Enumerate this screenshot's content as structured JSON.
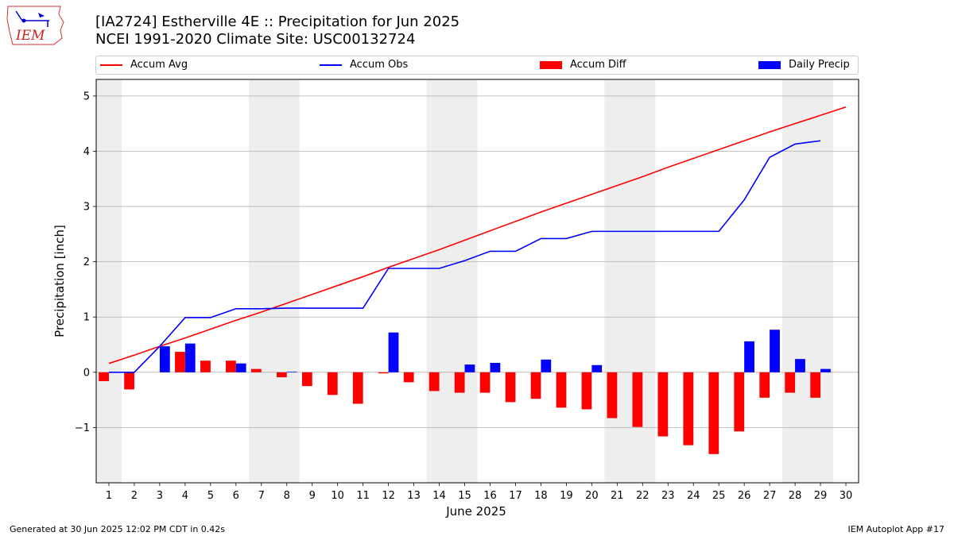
{
  "header": {
    "title_line1": "[IA2724] Estherville 4E :: Precipitation for Jun 2025",
    "title_line2": "NCEI 1991-2020 Climate Site: USC00132724"
  },
  "logo": {
    "text": "IEM"
  },
  "footer": {
    "left": "Generated at 30 Jun 2025 12:02 PM CDT in 0.42s",
    "right": "IEM Autoplot App #17"
  },
  "colors": {
    "avg": "#ff0000",
    "obs": "#0000ff",
    "diff": "#ff0000",
    "daily": "#0000ff",
    "weekend_shade": "#eeeeee",
    "grid": "#b0b0b0"
  },
  "chart_data": {
    "type": "bar",
    "xlabel": "June 2025",
    "ylabel": "Precipitation [inch]",
    "ylim": [
      -2.0,
      5.3
    ],
    "yticks": [
      -1,
      0,
      1,
      2,
      3,
      4,
      5
    ],
    "ytick_labels": [
      "−1",
      "0",
      "1",
      "2",
      "3",
      "4",
      "5"
    ],
    "xlim": [
      0.5,
      30.5
    ],
    "days": [
      1,
      2,
      3,
      4,
      5,
      6,
      7,
      8,
      9,
      10,
      11,
      12,
      13,
      14,
      15,
      16,
      17,
      18,
      19,
      20,
      21,
      22,
      23,
      24,
      25,
      26,
      27,
      28,
      29,
      30
    ],
    "weekend_spans": [
      [
        0.5,
        1.5
      ],
      [
        6.5,
        8.5
      ],
      [
        13.5,
        15.5
      ],
      [
        20.5,
        22.5
      ],
      [
        27.5,
        29.5
      ]
    ],
    "grid": "horizontal",
    "legend": [
      "Accum Avg",
      "Accum Obs",
      "Accum Diff",
      "Daily Precip"
    ],
    "accum_avg": [
      0.16,
      0.31,
      0.47,
      0.62,
      0.78,
      0.94,
      1.09,
      1.25,
      1.41,
      1.57,
      1.73,
      1.9,
      2.06,
      2.22,
      2.39,
      2.56,
      2.73,
      2.9,
      3.06,
      3.22,
      3.38,
      3.54,
      3.71,
      3.87,
      4.03,
      4.19,
      4.35,
      4.5,
      4.65,
      4.8
    ],
    "accum_obs": [
      0.0,
      0.0,
      0.47,
      0.99,
      0.99,
      1.15,
      1.15,
      1.16,
      1.16,
      1.16,
      1.16,
      1.88,
      1.88,
      1.88,
      2.02,
      2.19,
      2.19,
      2.42,
      2.42,
      2.55,
      2.55,
      2.55,
      2.55,
      2.55,
      2.55,
      3.12,
      3.89,
      4.13,
      4.19
    ],
    "accum_diff": [
      -0.16,
      -0.31,
      0.0,
      0.37,
      0.21,
      0.21,
      0.06,
      -0.09,
      -0.25,
      -0.41,
      -0.57,
      -0.02,
      -0.18,
      -0.34,
      -0.37,
      -0.37,
      -0.54,
      -0.48,
      -0.64,
      -0.67,
      -0.83,
      -0.99,
      -1.16,
      -1.32,
      -1.48,
      -1.07,
      -0.46,
      -0.37,
      -0.46
    ],
    "daily_precip": [
      0.0,
      0.0,
      0.47,
      0.52,
      0.0,
      0.16,
      0.0,
      0.01,
      0.0,
      0.0,
      0.0,
      0.72,
      0.0,
      0.0,
      0.14,
      0.17,
      0.0,
      0.23,
      0.0,
      0.13,
      0.0,
      0.0,
      0.0,
      0.0,
      0.0,
      0.56,
      0.77,
      0.24,
      0.06
    ]
  }
}
